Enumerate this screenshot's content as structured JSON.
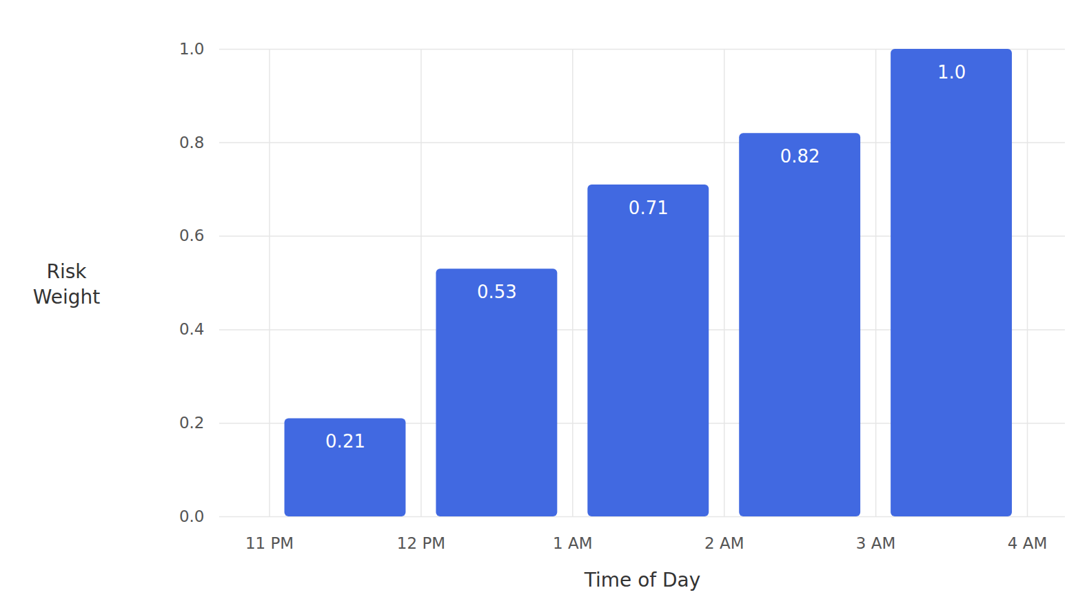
{
  "chart_data": {
    "type": "histogram",
    "bins": [
      "11 PM",
      "12 PM",
      "1 AM",
      "2 AM",
      "3 AM",
      "4 AM"
    ],
    "values": [
      0.21,
      0.53,
      0.71,
      0.82,
      1.0
    ],
    "value_labels": [
      "0.21",
      "0.53",
      "0.71",
      "0.82",
      "1.0"
    ],
    "color": "#4169e1",
    "x_label": "Time of Day",
    "y_label": "Risk Weight",
    "ylim": [
      0,
      1
    ],
    "yticks": [
      {
        "value": 0,
        "label": "0.0"
      },
      0.2,
      0.4,
      0.6,
      0.8,
      {
        "value": 1,
        "label": "1.0"
      }
    ],
    "grid": true,
    "data_labels": true
  }
}
